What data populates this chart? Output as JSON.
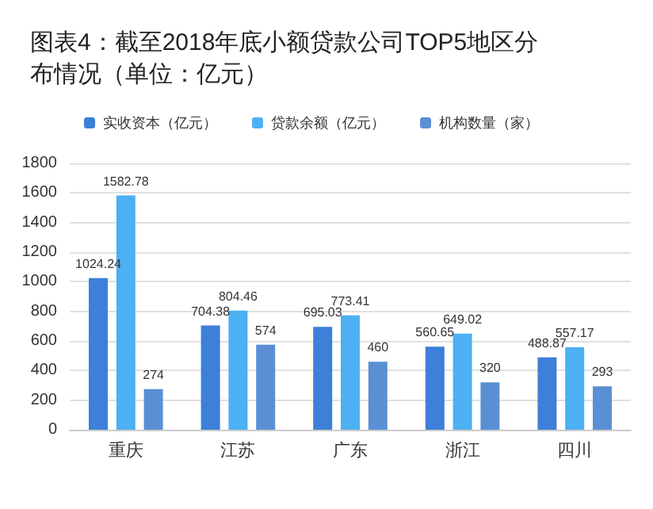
{
  "chart_data": {
    "type": "bar",
    "title": "图表4：截至2018年底小额贷款公司TOP5地区分布情况（单位：亿元）",
    "categories": [
      "重庆",
      "江苏",
      "广东",
      "浙江",
      "四川"
    ],
    "series": [
      {
        "name": "实收资本（亿元）",
        "color": "#3d7fd9",
        "values": [
          1024.24,
          704.38,
          695.03,
          560.65,
          488.87
        ]
      },
      {
        "name": "贷款余额（亿元）",
        "color": "#4cb0f2",
        "values": [
          1582.78,
          804.46,
          773.41,
          649.02,
          557.17
        ]
      },
      {
        "name": "机构数量（家）",
        "color": "#5b8fd4",
        "values": [
          274,
          574,
          460,
          320,
          293
        ]
      }
    ],
    "ylim": [
      0,
      1800
    ],
    "yticks": [
      0,
      200,
      400,
      600,
      800,
      1000,
      1200,
      1400,
      1600,
      1800
    ],
    "grid": "y",
    "legend": "top",
    "data_labels": true
  }
}
